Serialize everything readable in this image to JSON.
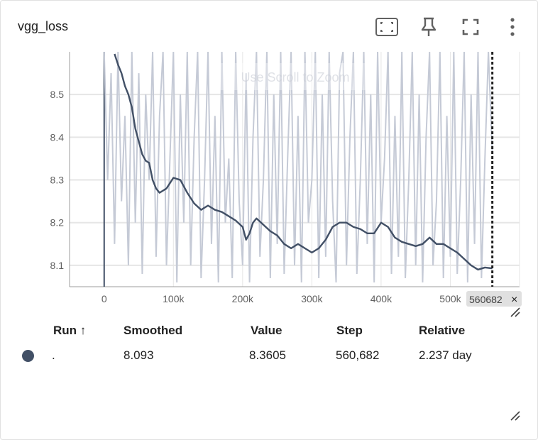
{
  "card": {
    "title": "vgg_loss"
  },
  "toolbar": {
    "fit_icon": "fit-domain-icon",
    "pin_icon": "pin-icon",
    "fullscreen_icon": "fullscreen-icon",
    "menu_icon": "more-vert-icon"
  },
  "overlay_hint": "Use Scroll to Zoom",
  "cursor": {
    "step_label": "560682",
    "close_glyph": "×"
  },
  "table": {
    "headers": {
      "run": "Run ↑",
      "smoothed": "Smoothed",
      "value": "Value",
      "step": "Step",
      "relative": "Relative"
    },
    "rows": [
      {
        "run": ".",
        "smoothed": "8.093",
        "value": "8.3605",
        "step": "560,682",
        "relative": "2.237 day",
        "color": "#425066"
      }
    ]
  },
  "colors": {
    "smoothed_line": "#425066",
    "raw_line": "#c5cad6",
    "grid": "#e6e6e6",
    "axis": "#9e9e9e",
    "dot": "#425066"
  },
  "chart_data": {
    "type": "line",
    "title": "vgg_loss",
    "xlabel": "",
    "ylabel": "",
    "x_tick_labels": [
      "0",
      "100k",
      "200k",
      "300k",
      "400k",
      "500k"
    ],
    "x_ticks": [
      0,
      100000,
      200000,
      300000,
      400000,
      500000
    ],
    "y_tick_labels": [
      "8.1",
      "8.2",
      "8.3",
      "8.4",
      "8.5"
    ],
    "y_ticks": [
      8.1,
      8.2,
      8.3,
      8.4,
      8.5
    ],
    "xlim": [
      -50000,
      600000
    ],
    "ylim": [
      8.05,
      8.6
    ],
    "grid": true,
    "cursor_step": 560682,
    "series": [
      {
        "name": "Smoothed",
        "x": [
          15000,
          20000,
          25000,
          30000,
          35000,
          40000,
          45000,
          50000,
          55000,
          60000,
          65000,
          70000,
          75000,
          80000,
          90000,
          100000,
          110000,
          115000,
          120000,
          130000,
          140000,
          150000,
          160000,
          170000,
          180000,
          190000,
          200000,
          205000,
          210000,
          215000,
          220000,
          230000,
          240000,
          250000,
          260000,
          270000,
          280000,
          290000,
          300000,
          310000,
          320000,
          330000,
          340000,
          350000,
          360000,
          370000,
          380000,
          390000,
          400000,
          410000,
          420000,
          430000,
          440000,
          450000,
          460000,
          470000,
          480000,
          490000,
          500000,
          510000,
          520000,
          530000,
          540000,
          550000,
          560682
        ],
        "y": [
          8.595,
          8.57,
          8.55,
          8.52,
          8.5,
          8.47,
          8.42,
          8.39,
          8.36,
          8.345,
          8.34,
          8.3,
          8.28,
          8.27,
          8.28,
          8.305,
          8.3,
          8.285,
          8.27,
          8.245,
          8.23,
          8.24,
          8.23,
          8.225,
          8.215,
          8.205,
          8.19,
          8.16,
          8.175,
          8.2,
          8.21,
          8.195,
          8.18,
          8.17,
          8.15,
          8.14,
          8.15,
          8.14,
          8.13,
          8.14,
          8.16,
          8.19,
          8.2,
          8.2,
          8.19,
          8.185,
          8.175,
          8.175,
          8.2,
          8.19,
          8.165,
          8.155,
          8.15,
          8.145,
          8.15,
          8.165,
          8.15,
          8.15,
          8.14,
          8.13,
          8.115,
          8.1,
          8.09,
          8.095,
          8.093
        ]
      },
      {
        "name": "Value",
        "x": [
          0,
          5000,
          10000,
          15000,
          20000,
          25000,
          30000,
          35000,
          40000,
          45000,
          50000,
          55000,
          60000,
          65000,
          70000,
          75000,
          80000,
          85000,
          90000,
          95000,
          100000,
          105000,
          110000,
          115000,
          120000,
          125000,
          130000,
          135000,
          140000,
          145000,
          150000,
          155000,
          160000,
          165000,
          170000,
          175000,
          180000,
          185000,
          190000,
          195000,
          200000,
          205000,
          210000,
          215000,
          220000,
          225000,
          230000,
          235000,
          240000,
          245000,
          250000,
          255000,
          260000,
          265000,
          270000,
          275000,
          280000,
          285000,
          290000,
          295000,
          300000,
          305000,
          310000,
          315000,
          320000,
          325000,
          330000,
          335000,
          340000,
          345000,
          350000,
          355000,
          360000,
          365000,
          370000,
          375000,
          380000,
          385000,
          390000,
          395000,
          400000,
          405000,
          410000,
          415000,
          420000,
          425000,
          430000,
          435000,
          440000,
          445000,
          450000,
          455000,
          460000,
          465000,
          470000,
          475000,
          480000,
          485000,
          490000,
          495000,
          500000,
          505000,
          510000,
          515000,
          520000,
          525000,
          530000,
          535000,
          540000,
          545000,
          550000,
          555000,
          560682
        ],
        "y": [
          8.6,
          8.3,
          8.55,
          8.15,
          8.6,
          8.25,
          8.45,
          8.1,
          8.6,
          8.2,
          8.55,
          8.08,
          8.5,
          8.3,
          8.6,
          8.12,
          8.45,
          8.6,
          8.1,
          8.35,
          8.6,
          8.06,
          8.5,
          8.2,
          8.6,
          8.1,
          8.4,
          8.6,
          8.07,
          8.3,
          8.6,
          8.15,
          8.45,
          8.06,
          8.6,
          8.2,
          8.35,
          8.07,
          8.6,
          8.25,
          8.1,
          8.55,
          8.06,
          8.4,
          8.6,
          8.12,
          8.3,
          8.6,
          8.07,
          8.5,
          8.15,
          8.6,
          8.08,
          8.35,
          8.6,
          8.1,
          8.45,
          8.06,
          8.6,
          8.2,
          8.3,
          8.6,
          8.07,
          8.5,
          8.12,
          8.6,
          8.25,
          8.06,
          8.55,
          8.6,
          8.1,
          8.4,
          8.6,
          8.08,
          8.3,
          8.6,
          8.15,
          8.5,
          8.06,
          8.6,
          8.2,
          8.35,
          8.6,
          8.08,
          8.45,
          8.12,
          8.6,
          8.07,
          8.3,
          8.6,
          8.1,
          8.5,
          8.06,
          8.4,
          8.6,
          8.1,
          8.25,
          8.6,
          8.07,
          8.45,
          8.12,
          8.6,
          8.08,
          8.3,
          8.6,
          8.06,
          8.5,
          8.15,
          8.6,
          8.07,
          8.35,
          8.6,
          8.3605
        ]
      }
    ]
  }
}
